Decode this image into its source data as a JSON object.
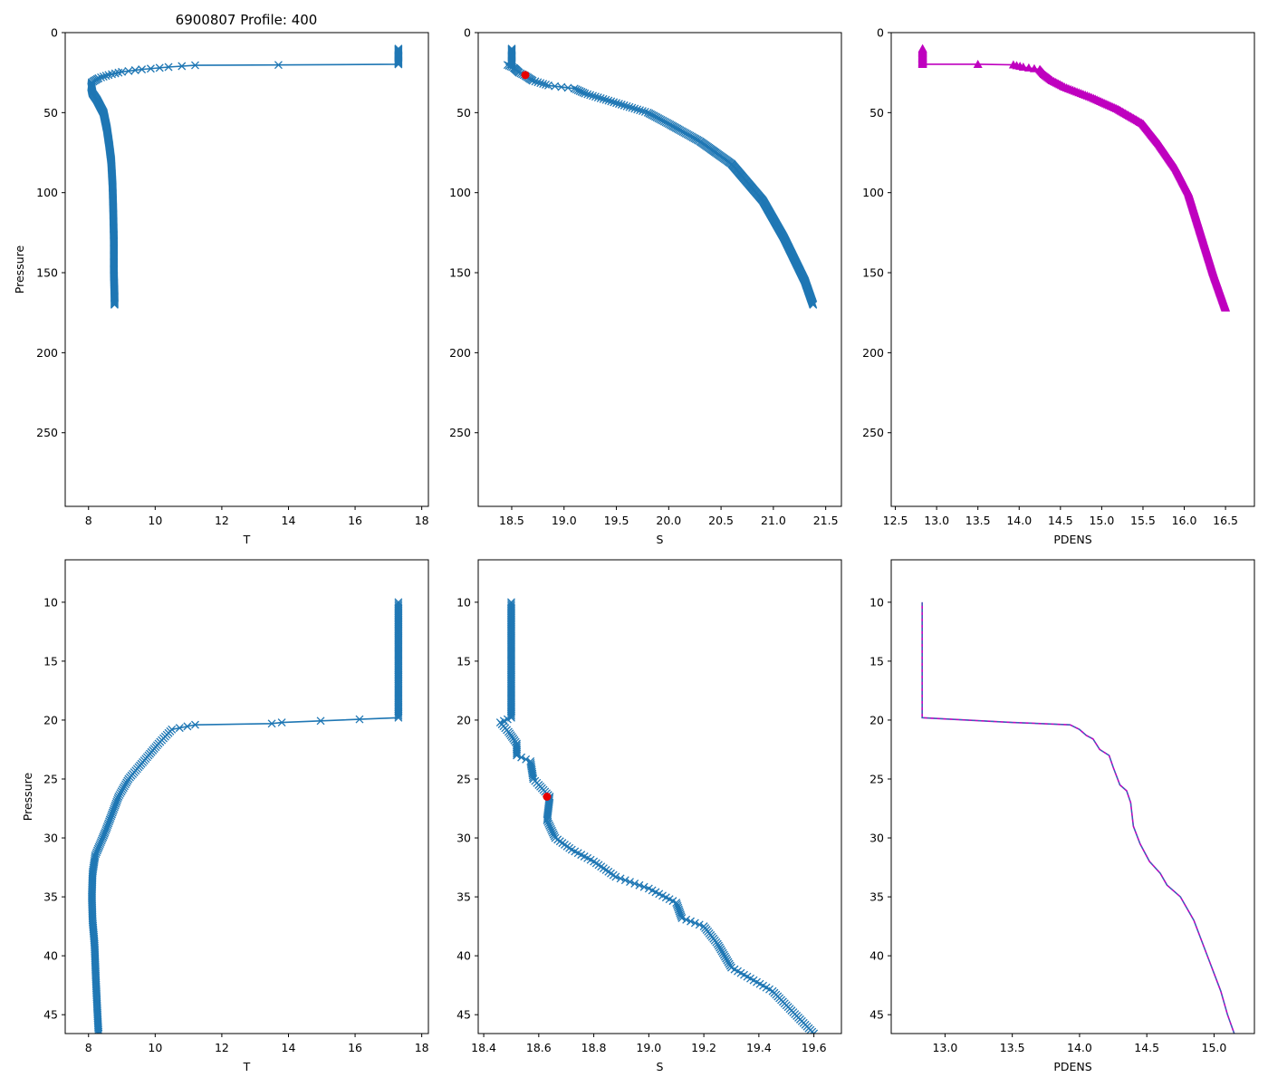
{
  "figure_title": "6900807 Profile: 400",
  "colors": {
    "series": "#1f77b4",
    "mld_marker": "#e60000",
    "pdens": "#bf00bf",
    "pdens_dash": "#1f77b4"
  },
  "chart_data": [
    {
      "id": "T-full",
      "type": "line",
      "title": "6900807 Profile: 400",
      "xlabel": "T",
      "ylabel": "Pressure",
      "xlim": [
        7.3,
        18.2
      ],
      "ylim": [
        296,
        0
      ],
      "xticks": [
        8,
        10,
        12,
        14,
        16,
        18
      ],
      "xtick_labels": [
        "8",
        "10",
        "12",
        "14",
        "16",
        "18"
      ],
      "yticks": [
        0,
        50,
        100,
        150,
        200,
        250
      ],
      "ytick_labels": [
        "0",
        "50",
        "100",
        "150",
        "200",
        "250"
      ],
      "marker": "x",
      "marker_every": 0.5,
      "series": [
        {
          "name": "T",
          "x": [
            17.3,
            17.3,
            17.3,
            13.7,
            11.2,
            10.4,
            9.6,
            9.0,
            8.6,
            8.3,
            8.1,
            8.08,
            8.12,
            8.25,
            8.45,
            8.55,
            8.62,
            8.68,
            8.72,
            8.74,
            8.76,
            8.76,
            8.78,
            8.78
          ],
          "y": [
            10,
            15,
            19.8,
            20.2,
            20.4,
            21.5,
            23,
            24.5,
            26.5,
            28.5,
            31,
            34,
            38,
            42,
            50,
            60,
            70,
            80,
            95,
            110,
            130,
            150,
            165,
            170
          ]
        }
      ]
    },
    {
      "id": "S-full",
      "type": "line",
      "title": "",
      "xlabel": "S",
      "ylabel": "",
      "xlim": [
        18.18,
        21.65
      ],
      "ylim": [
        296,
        0
      ],
      "xticks": [
        18.5,
        19.0,
        19.5,
        20.0,
        20.5,
        21.0,
        21.5
      ],
      "xtick_labels": [
        "18.5",
        "19.0",
        "19.5",
        "20.0",
        "20.5",
        "21.0",
        "21.5"
      ],
      "yticks": [
        0,
        50,
        100,
        150,
        200,
        250
      ],
      "ytick_labels": [
        "0",
        "50",
        "100",
        "150",
        "200",
        "250"
      ],
      "marker": "x",
      "marker_every": 0.5,
      "series": [
        {
          "name": "S",
          "x": [
            18.5,
            18.5,
            18.5,
            18.46,
            18.52,
            18.57,
            18.63,
            18.7,
            18.85,
            19.1,
            19.2,
            19.5,
            19.8,
            20.0,
            20.3,
            20.6,
            20.9,
            21.1,
            21.3,
            21.38
          ],
          "y": [
            10,
            15,
            19.8,
            20.2,
            22,
            25,
            27,
            30,
            33,
            35,
            38,
            44,
            50,
            57,
            68,
            82,
            105,
            128,
            155,
            170
          ]
        }
      ],
      "mld_point": {
        "x": 18.63,
        "y": 26.5
      }
    },
    {
      "id": "PDENS-full",
      "type": "line",
      "title": "",
      "xlabel": "PDENS",
      "ylabel": "",
      "xlim": [
        12.45,
        16.85
      ],
      "ylim": [
        296,
        0
      ],
      "xticks": [
        12.5,
        13.0,
        13.5,
        14.0,
        14.5,
        15.0,
        15.5,
        16.0,
        16.5
      ],
      "xtick_labels": [
        "12.5",
        "13.0",
        "13.5",
        "14.0",
        "14.5",
        "15.0",
        "15.5",
        "16.0",
        "16.5"
      ],
      "yticks": [
        0,
        50,
        100,
        150,
        200,
        250
      ],
      "ytick_labels": [
        "0",
        "50",
        "100",
        "150",
        "200",
        "250"
      ],
      "marker": "^",
      "marker_every": 0.5,
      "series": [
        {
          "name": "PDENS",
          "x": [
            12.83,
            12.83,
            12.83,
            13.5,
            13.93,
            14.05,
            14.25,
            14.3,
            14.4,
            14.55,
            14.9,
            15.2,
            15.5,
            15.7,
            15.9,
            16.05,
            16.2,
            16.35,
            16.5
          ],
          "y": [
            10,
            15,
            19.8,
            19.8,
            20.1,
            21.5,
            23,
            26,
            30,
            34,
            41,
            48,
            57,
            70,
            85,
            100,
            125,
            150,
            172
          ]
        }
      ]
    },
    {
      "id": "T-zoom",
      "type": "line",
      "title": "",
      "xlabel": "T",
      "ylabel": "Pressure",
      "xlim": [
        7.3,
        18.2
      ],
      "ylim": [
        46.6,
        6.4
      ],
      "xticks": [
        8,
        10,
        12,
        14,
        16,
        18
      ],
      "xtick_labels": [
        "8",
        "10",
        "12",
        "14",
        "16",
        "18"
      ],
      "yticks": [
        10,
        15,
        20,
        25,
        30,
        35,
        40,
        45
      ],
      "ytick_labels": [
        "10",
        "15",
        "20",
        "25",
        "30",
        "35",
        "40",
        "45"
      ],
      "marker": "x",
      "marker_every": 0.15,
      "series": [
        {
          "name": "T",
          "x": [
            17.3,
            17.3,
            17.3,
            13.8,
            13.5,
            11.2,
            10.5,
            10.1,
            9.8,
            9.5,
            9.2,
            8.9,
            8.7,
            8.5,
            8.35,
            8.2,
            8.12,
            8.1,
            8.12,
            8.18,
            8.22,
            8.27,
            8.3
          ],
          "y": [
            10,
            15,
            19.8,
            20.2,
            20.3,
            20.4,
            20.8,
            22,
            23,
            24,
            25,
            26.5,
            28,
            29.5,
            30.5,
            31.5,
            33,
            35,
            37,
            39,
            42,
            45,
            46.6
          ]
        }
      ]
    },
    {
      "id": "S-zoom",
      "type": "line",
      "title": "",
      "xlabel": "S",
      "ylabel": "",
      "xlim": [
        18.38,
        19.7
      ],
      "ylim": [
        46.6,
        6.4
      ],
      "xticks": [
        18.4,
        18.6,
        18.8,
        19.0,
        19.2,
        19.4,
        19.6
      ],
      "xtick_labels": [
        "18.4",
        "18.6",
        "18.8",
        "19.0",
        "19.2",
        "19.4",
        "19.6"
      ],
      "yticks": [
        10,
        15,
        20,
        25,
        30,
        35,
        40,
        45
      ],
      "ytick_labels": [
        "10",
        "15",
        "20",
        "25",
        "30",
        "35",
        "40",
        "45"
      ],
      "marker": "x",
      "marker_every": 0.15,
      "series": [
        {
          "name": "S",
          "x": [
            18.5,
            18.5,
            18.5,
            18.46,
            18.49,
            18.52,
            18.52,
            18.57,
            18.58,
            18.6,
            18.64,
            18.63,
            18.66,
            18.72,
            18.8,
            18.88,
            19.0,
            19.1,
            19.12,
            19.2,
            19.25,
            19.3,
            19.45,
            19.6
          ],
          "y": [
            10,
            15,
            19.8,
            20.2,
            21,
            22,
            23,
            23.5,
            25,
            25.5,
            26.5,
            28.5,
            30,
            31,
            32,
            33.3,
            34.3,
            35.5,
            36.8,
            37.5,
            39,
            41,
            43,
            46.6
          ]
        }
      ],
      "mld_point": {
        "x": 18.63,
        "y": 26.5
      }
    },
    {
      "id": "PDENS-zoom",
      "type": "line",
      "title": "",
      "xlabel": "PDENS",
      "ylabel": "",
      "xlim": [
        12.6,
        15.3
      ],
      "ylim": [
        46.6,
        6.4
      ],
      "xticks": [
        13.0,
        13.5,
        14.0,
        14.5,
        15.0
      ],
      "xtick_labels": [
        "13.0",
        "13.5",
        "14.0",
        "14.5",
        "15.0"
      ],
      "yticks": [
        10,
        15,
        20,
        25,
        30,
        35,
        40,
        45
      ],
      "ytick_labels": [
        "10",
        "15",
        "20",
        "25",
        "30",
        "35",
        "40",
        "45"
      ],
      "marker": "none",
      "marker_every": 0,
      "series": [
        {
          "name": "PDENS",
          "x": [
            12.83,
            12.83,
            12.83,
            13.5,
            13.93,
            14.0,
            14.05,
            14.1,
            14.15,
            14.22,
            14.25,
            14.3,
            14.35,
            14.38,
            14.4,
            14.45,
            14.52,
            14.6,
            14.65,
            14.75,
            14.85,
            14.9,
            14.95,
            15.05,
            15.1,
            15.15
          ],
          "y": [
            10,
            15,
            19.8,
            20.2,
            20.4,
            20.8,
            21.3,
            21.6,
            22.5,
            23,
            24,
            25.5,
            26,
            27,
            29,
            30.5,
            32,
            33,
            34,
            35,
            37,
            38.5,
            40,
            43,
            45,
            46.6
          ]
        }
      ]
    }
  ]
}
